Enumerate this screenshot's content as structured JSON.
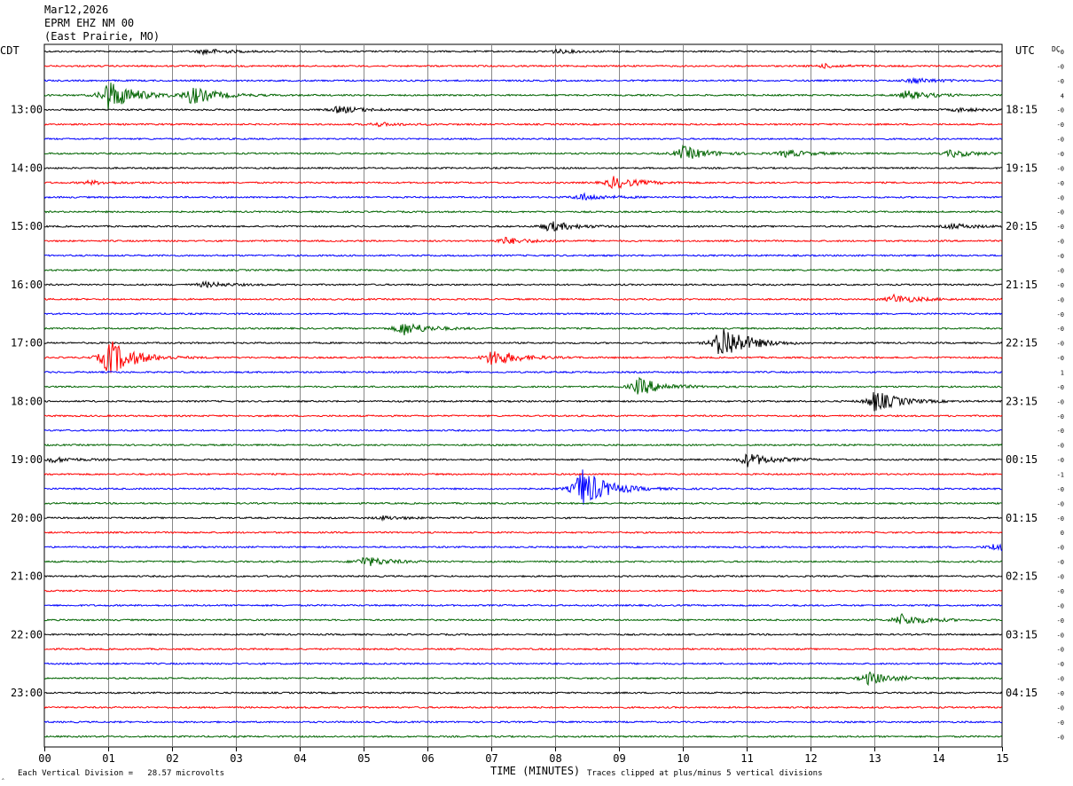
{
  "header": {
    "date": "Mar12,2026",
    "station": "EPRM EHZ NM 00",
    "location": "(East Prairie, MO)"
  },
  "labels": {
    "left_tz": "CDT",
    "right_tz": "UTC",
    "dc": "DC",
    "xlabel": "TIME (MINUTES)",
    "scale_note": "Each Vertical Division =   28.57 microvolts",
    "clip_note": "Traces clipped at plus/minus 5 vertical divisions",
    "corner_mark": "‸"
  },
  "chart_data": {
    "type": "line",
    "xlabel": "TIME (MINUTES)",
    "xlim": [
      0,
      15
    ],
    "x_ticks": [
      "00",
      "01",
      "02",
      "03",
      "04",
      "05",
      "06",
      "07",
      "08",
      "09",
      "10",
      "11",
      "12",
      "13",
      "14",
      "15"
    ],
    "trace_count": 48,
    "trace_interval_minutes": 15,
    "trace_colors": [
      "#000000",
      "#ff0000",
      "#0000ff",
      "#006400"
    ],
    "left_hour_labels": [
      "13:00",
      "14:00",
      "15:00",
      "16:00",
      "17:00",
      "18:00",
      "19:00",
      "20:00",
      "21:00",
      "22:00",
      "23:00"
    ],
    "right_hour_labels": [
      "18:15",
      "19:15",
      "20:15",
      "21:15",
      "22:15",
      "23:15",
      "00:15",
      "01:15",
      "02:15",
      "03:15",
      "04:15"
    ],
    "dc_offsets": [
      "-0",
      "-0",
      "-0",
      "4",
      "-0",
      "-0",
      "-0",
      "-0",
      "-0",
      "-0",
      "-0",
      "-0",
      "-0",
      "-0",
      "-0",
      "-0",
      "-0",
      "-0",
      "-0",
      "-0",
      "-0",
      "-0",
      "1",
      "-0",
      "-0",
      "-0",
      "-0",
      "-0",
      "-0",
      "-1",
      "-0",
      "-0",
      "-0",
      "0",
      "-0",
      "-0",
      "-0",
      "-0",
      "-0",
      "-0",
      "-0",
      "-0",
      "-0",
      "-0",
      "-0",
      "-0",
      "-0",
      "-0"
    ],
    "events": [
      {
        "trace": 0,
        "minute": 2.5,
        "amp": 3
      },
      {
        "trace": 0,
        "minute": 8.0,
        "amp": 2
      },
      {
        "trace": 1,
        "minute": 12.2,
        "amp": 2
      },
      {
        "trace": 2,
        "minute": 13.6,
        "amp": 3
      },
      {
        "trace": 3,
        "minute": 1.0,
        "amp": 18
      },
      {
        "trace": 3,
        "minute": 2.3,
        "amp": 10
      },
      {
        "trace": 3,
        "minute": 13.5,
        "amp": 5
      },
      {
        "trace": 4,
        "minute": 4.6,
        "amp": 4
      },
      {
        "trace": 4,
        "minute": 14.3,
        "amp": 2
      },
      {
        "trace": 5,
        "minute": 5.2,
        "amp": 2
      },
      {
        "trace": 7,
        "minute": 10.0,
        "amp": 8
      },
      {
        "trace": 7,
        "minute": 11.6,
        "amp": 4
      },
      {
        "trace": 7,
        "minute": 14.2,
        "amp": 4
      },
      {
        "trace": 9,
        "minute": 0.7,
        "amp": 2
      },
      {
        "trace": 9,
        "minute": 8.9,
        "amp": 7
      },
      {
        "trace": 10,
        "minute": 8.4,
        "amp": 4
      },
      {
        "trace": 12,
        "minute": 7.9,
        "amp": 6
      },
      {
        "trace": 12,
        "minute": 14.2,
        "amp": 3
      },
      {
        "trace": 13,
        "minute": 7.2,
        "amp": 4
      },
      {
        "trace": 16,
        "minute": 2.5,
        "amp": 3
      },
      {
        "trace": 17,
        "minute": 13.3,
        "amp": 5
      },
      {
        "trace": 19,
        "minute": 5.6,
        "amp": 8
      },
      {
        "trace": 20,
        "minute": 10.6,
        "amp": 22
      },
      {
        "trace": 21,
        "minute": 1.0,
        "amp": 22
      },
      {
        "trace": 21,
        "minute": 7.0,
        "amp": 10
      },
      {
        "trace": 23,
        "minute": 9.3,
        "amp": 10
      },
      {
        "trace": 24,
        "minute": 13.0,
        "amp": 12
      },
      {
        "trace": 28,
        "minute": 11.0,
        "amp": 8
      },
      {
        "trace": 28,
        "minute": 0.1,
        "amp": 3
      },
      {
        "trace": 30,
        "minute": 8.4,
        "amp": 24
      },
      {
        "trace": 32,
        "minute": 5.3,
        "amp": 2
      },
      {
        "trace": 34,
        "minute": 14.9,
        "amp": 5
      },
      {
        "trace": 35,
        "minute": 5.0,
        "amp": 6
      },
      {
        "trace": 39,
        "minute": 13.4,
        "amp": 7
      },
      {
        "trace": 43,
        "minute": 12.9,
        "amp": 7
      }
    ]
  }
}
